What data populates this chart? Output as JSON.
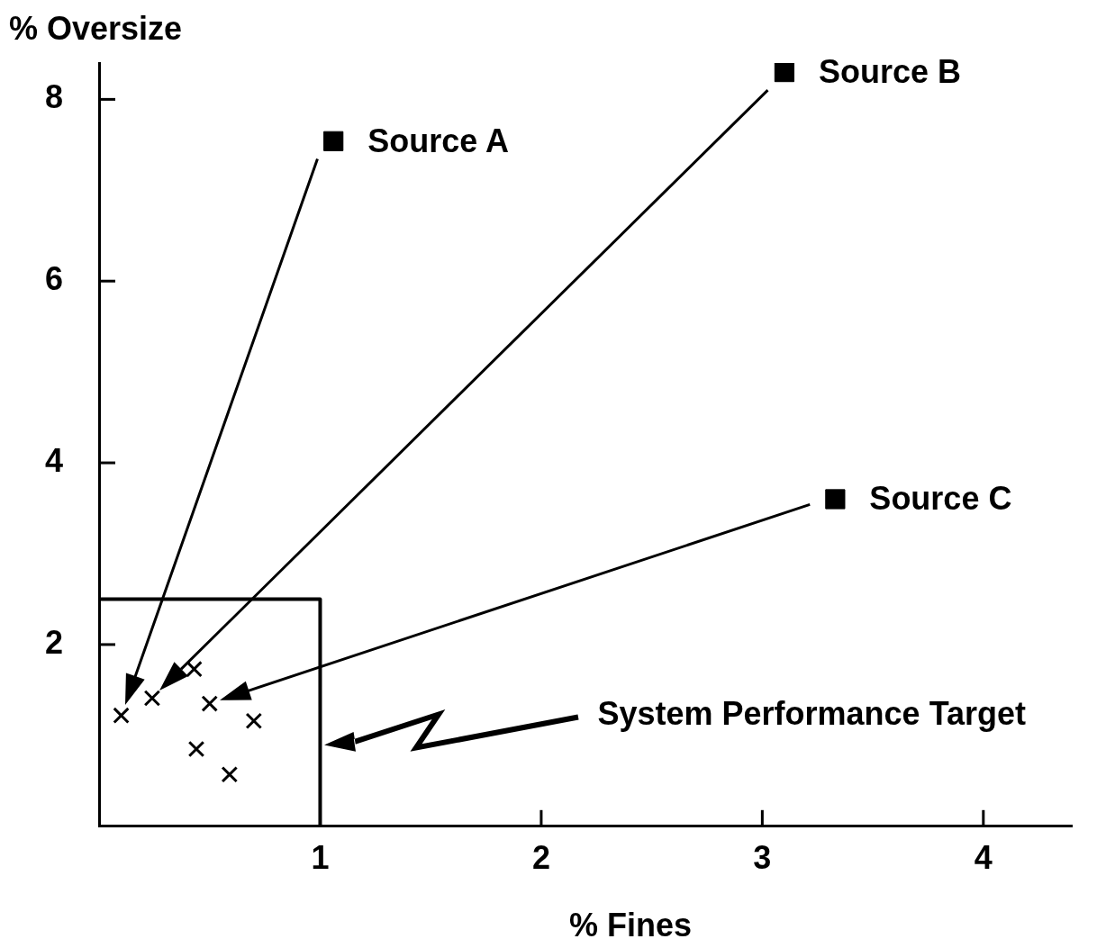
{
  "chart_data": {
    "type": "scatter",
    "xlabel": "% Fines",
    "ylabel": "% Oversize",
    "xlim": [
      0,
      4.4
    ],
    "xticks": [
      1,
      2,
      3,
      4
    ],
    "ylim": [
      0,
      8.4
    ],
    "yticks": [
      2,
      4,
      6,
      8
    ],
    "grid": false,
    "legend": false,
    "series": [
      {
        "type": "scatter",
        "marker": "cross",
        "color": "#000000",
        "x": [
          0.1,
          0.24,
          0.43,
          0.5,
          0.7,
          0.44,
          0.59
        ],
        "values": [
          1.22,
          1.41,
          1.73,
          1.35,
          1.16,
          0.85,
          0.57
        ]
      },
      {
        "type": "scatter",
        "marker": "square",
        "name": "Source A",
        "color": "#000000",
        "x": [
          1.06
        ],
        "values": [
          7.54
        ]
      },
      {
        "marker": "square",
        "name": "Source B",
        "color": "#000000",
        "x": [
          3.1
        ],
        "values": [
          8.3
        ]
      },
      {
        "marker": "square",
        "name": "Source C",
        "color": "#000000",
        "x": [
          3.33
        ],
        "values": [
          3.6
        ]
      },
      {
        "type": "line",
        "marker": "none",
        "color": "#000000",
        "x": [
          0,
          1,
          1
        ],
        "values": [
          2.5,
          2.5,
          0
        ]
      }
    ],
    "annotations": [
      "System Performance Target"
    ]
  }
}
